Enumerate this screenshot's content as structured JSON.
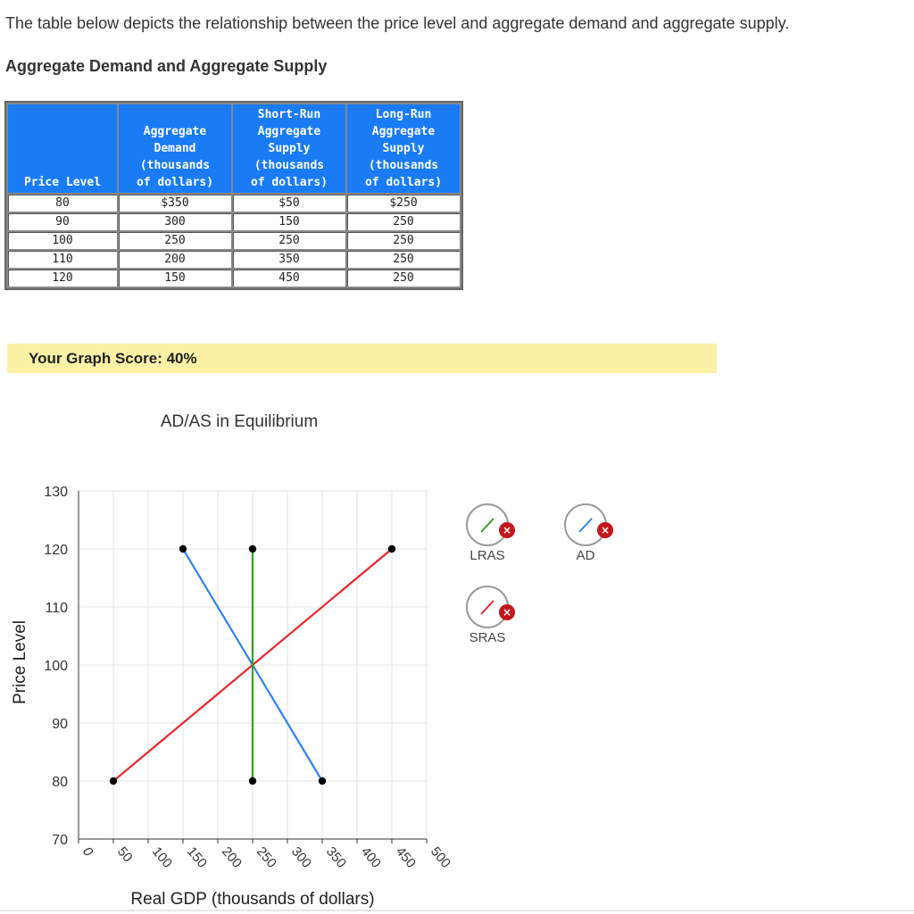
{
  "intro_text": "The table below depicts the relationship between the price level and aggregate demand and aggregate supply.",
  "table": {
    "title": "Aggregate Demand and Aggregate Supply",
    "headers": [
      "Price Level",
      "Aggregate\nDemand\n(thousands\nof dollars)",
      "Short-Run\nAggregate\nSupply\n(thousands\nof dollars)",
      "Long-Run\nAggregate\nSupply\n(thousands\nof dollars)"
    ],
    "rows": [
      [
        "80",
        "$350",
        "$50",
        "$250"
      ],
      [
        "90",
        "300",
        "150",
        "250"
      ],
      [
        "100",
        "250",
        "250",
        "250"
      ],
      [
        "110",
        "200",
        "350",
        "250"
      ],
      [
        "120",
        "150",
        "450",
        "250"
      ]
    ]
  },
  "score_text": "Your Graph Score: 40%",
  "chart_data": {
    "type": "line",
    "title": "AD/AS in Equilibrium",
    "xlabel": "Real GDP (thousands of dollars)",
    "ylabel": "Price Level",
    "xlim": [
      0,
      500
    ],
    "ylim": [
      70,
      130
    ],
    "x_ticks": [
      0,
      50,
      100,
      150,
      200,
      250,
      300,
      350,
      400,
      450,
      500
    ],
    "y_ticks": [
      70,
      80,
      90,
      100,
      110,
      120,
      130
    ],
    "grid": true,
    "series": [
      {
        "name": "SRAS",
        "color": "#e8262b",
        "points": [
          [
            50,
            80
          ],
          [
            450,
            120
          ]
        ]
      },
      {
        "name": "AD",
        "color": "#2a86f0",
        "points": [
          [
            150,
            120
          ],
          [
            350,
            80
          ]
        ]
      },
      {
        "name": "LRAS",
        "color": "#3c9a2a",
        "points": [
          [
            250,
            120
          ],
          [
            250,
            80
          ]
        ]
      }
    ]
  },
  "legend": [
    {
      "name": "LRAS",
      "color": "#3c9a2a",
      "status": "incorrect"
    },
    {
      "name": "AD",
      "color": "#2a86f0",
      "status": "incorrect"
    },
    {
      "name": "SRAS",
      "color": "#e8262b",
      "status": "incorrect"
    }
  ],
  "legend_mark": "×"
}
